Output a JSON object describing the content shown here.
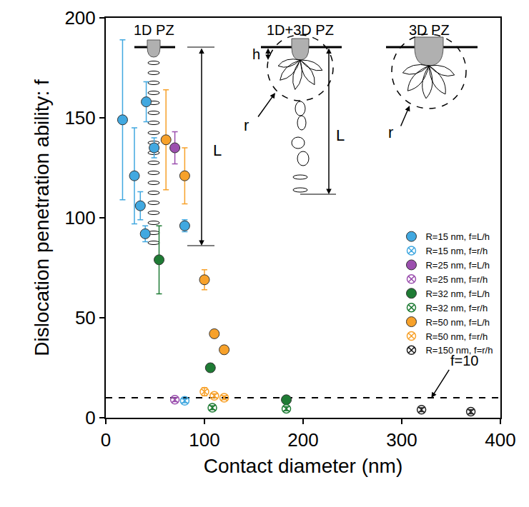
{
  "chart_data": {
    "type": "scatter",
    "x_label": "Contact diameter (nm)",
    "y_label": "Dislocation penetration ability: f",
    "xlim": [
      0,
      400
    ],
    "xticks": [
      0,
      100,
      200,
      300,
      400
    ],
    "ylim": [
      0,
      200
    ],
    "yticks": [
      0,
      50,
      100,
      150,
      200
    ],
    "grid": false,
    "legend": "right",
    "series": [
      {
        "name": "R=15 nm, f=L/h",
        "color": "#41a8e0",
        "marker": "filled",
        "x": [
          17,
          29,
          35,
          40,
          41,
          49,
          80
        ],
        "values": [
          149,
          121,
          106,
          92,
          158,
          135,
          96
        ],
        "errors": [
          40,
          24,
          7,
          4,
          10,
          5,
          3
        ]
      },
      {
        "name": "R=15 nm, f=r/h",
        "color": "#41a8e0",
        "marker": "crossed",
        "x": [
          80
        ],
        "values": [
          8.5
        ],
        "errors": [
          1
        ]
      },
      {
        "name": "R=25 nm, f=L/h",
        "color": "#9b4fae",
        "marker": "filled",
        "x": [
          70
        ],
        "values": [
          135
        ],
        "errors": [
          8
        ]
      },
      {
        "name": "R=25 nm, f=r/h",
        "color": "#9b4fae",
        "marker": "crossed",
        "x": [
          70
        ],
        "values": [
          9
        ],
        "errors": [
          1
        ]
      },
      {
        "name": "R=32 nm, f=L/h",
        "color": "#1e7b34",
        "marker": "filled",
        "x": [
          54,
          106,
          183
        ],
        "values": [
          79,
          25,
          9
        ],
        "errors": [
          17,
          2,
          1
        ]
      },
      {
        "name": "R=32 nm, f=r/h",
        "color": "#1e7b34",
        "marker": "crossed",
        "x": [
          108,
          183
        ],
        "values": [
          5,
          4.5
        ],
        "errors": [
          1,
          1
        ]
      },
      {
        "name": "R=50 nm, f=L/h",
        "color": "#f7a12a",
        "marker": "filled",
        "x": [
          61,
          80,
          100,
          110,
          120
        ],
        "values": [
          139,
          121,
          69,
          42,
          34
        ],
        "errors": [
          25,
          14,
          5,
          2,
          2
        ]
      },
      {
        "name": "R=50 nm, f=r/h",
        "color": "#f7a12a",
        "marker": "crossed",
        "x": [
          100,
          110,
          120
        ],
        "values": [
          13,
          11,
          10
        ],
        "errors": [
          2,
          1,
          1
        ]
      },
      {
        "name": "R=150 nm, f=r/h",
        "color": "#222222",
        "marker": "crossed",
        "x": [
          320,
          370
        ],
        "values": [
          4,
          3
        ],
        "errors": [
          1,
          1
        ]
      }
    ],
    "reference_line": {
      "value": 10,
      "label": "f=10",
      "line_style": "dashed"
    },
    "schematics": [
      {
        "title": "1D PZ",
        "labels": [
          "L"
        ]
      },
      {
        "title": "1D+3D PZ",
        "labels": [
          "h",
          "r",
          "L"
        ]
      },
      {
        "title": "3D PZ",
        "labels": [
          "r"
        ]
      }
    ]
  }
}
